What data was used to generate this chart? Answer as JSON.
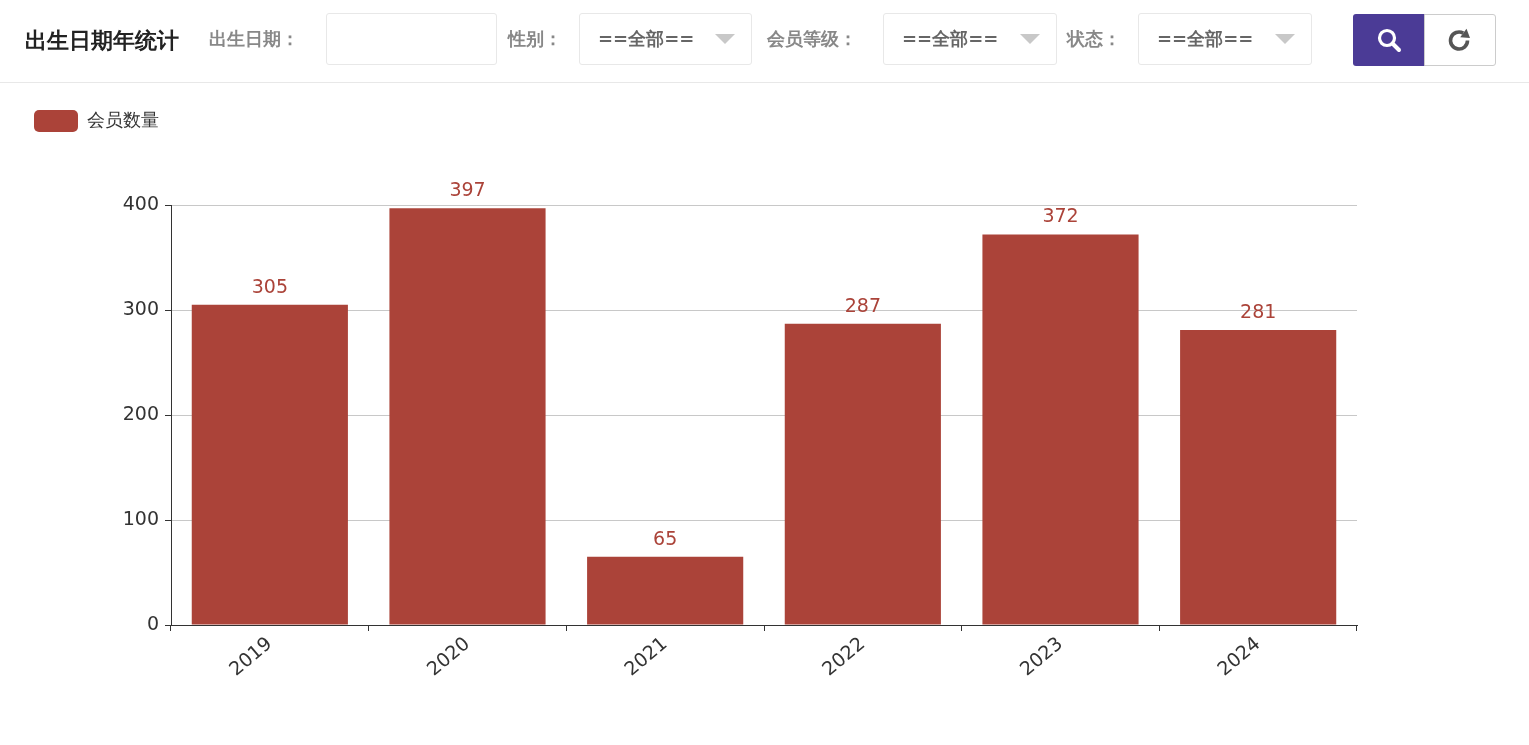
{
  "chart_data": {
    "type": "bar",
    "title": "出生日期年统计",
    "annotations": [
      "出生日期：",
      "性别：",
      "==全部==",
      "会员等级：",
      "==全部==",
      "状态：",
      "==全部=="
    ],
    "categories": [
      "2019",
      "2020",
      "2021",
      "2022",
      "2023",
      "2024"
    ],
    "series": [
      {
        "name": "会员数量",
        "color": "#ab4339",
        "values": [
          305,
          397,
          65,
          287,
          372,
          281
        ]
      }
    ],
    "ylim": [
      0,
      400
    ],
    "yticks": [
      0,
      100,
      200,
      300,
      400
    ],
    "grid": "y",
    "legend": "top left",
    "data_labels": true
  }
}
